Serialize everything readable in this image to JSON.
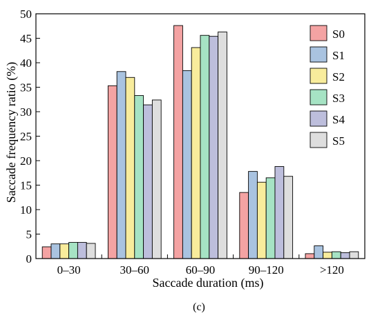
{
  "chart_data": {
    "type": "bar",
    "title": "",
    "xlabel": "Saccade duration (ms)",
    "ylabel": "Saccade frequency ratio (%)",
    "panel_label": "(c)",
    "categories": [
      "0–30",
      "30–60",
      "60–90",
      "90–120",
      ">120"
    ],
    "ylim": [
      0,
      50
    ],
    "yticks": [
      0,
      5,
      10,
      15,
      20,
      25,
      30,
      35,
      40,
      45,
      50
    ],
    "legend_position": "top-right",
    "grid": false,
    "series": [
      {
        "name": "S0",
        "color": "#F4A3A3",
        "values": [
          2.4,
          35.3,
          47.6,
          13.5,
          1.0
        ]
      },
      {
        "name": "S1",
        "color": "#A9C3E0",
        "values": [
          3.0,
          38.2,
          38.4,
          17.8,
          2.6
        ]
      },
      {
        "name": "S2",
        "color": "#F8EC9C",
        "values": [
          3.0,
          37.0,
          43.1,
          15.6,
          1.3
        ]
      },
      {
        "name": "S3",
        "color": "#A6E3C4",
        "values": [
          3.3,
          33.3,
          45.6,
          16.5,
          1.4
        ]
      },
      {
        "name": "S4",
        "color": "#BDBEDC",
        "values": [
          3.3,
          31.4,
          45.4,
          18.8,
          1.2
        ]
      },
      {
        "name": "S5",
        "color": "#DEDEDE",
        "values": [
          3.1,
          32.4,
          46.3,
          16.8,
          1.4
        ]
      }
    ]
  }
}
